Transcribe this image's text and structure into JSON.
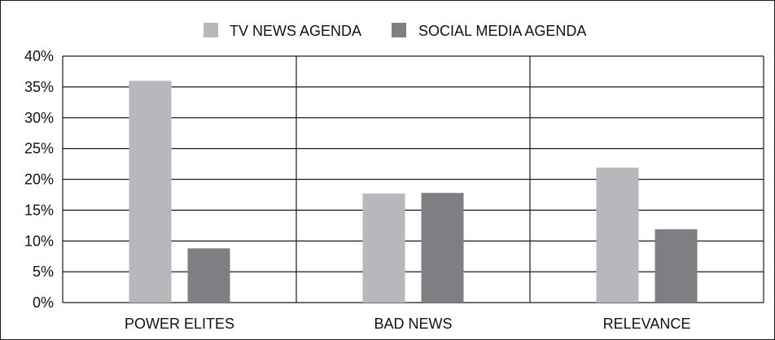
{
  "chart_data": {
    "type": "bar",
    "title": "",
    "xlabel": "",
    "ylabel": "",
    "categories": [
      "POWER ELITES",
      "BAD NEWS",
      "RELEVANCE"
    ],
    "series": [
      {
        "name": "TV NEWS AGENDA",
        "color": "#b7b8bb",
        "values": [
          36,
          17.7,
          21.9
        ]
      },
      {
        "name": "SOCIAL MEDIA AGENDA",
        "color": "#7e7f83",
        "values": [
          8.8,
          17.8,
          11.9
        ]
      }
    ],
    "ylim": [
      0,
      40
    ],
    "y_ticks": [
      "0%",
      "5%",
      "10%",
      "15%",
      "20%",
      "25%",
      "30%",
      "35%",
      "40%"
    ],
    "grid": true,
    "legend_position": "top-center"
  }
}
